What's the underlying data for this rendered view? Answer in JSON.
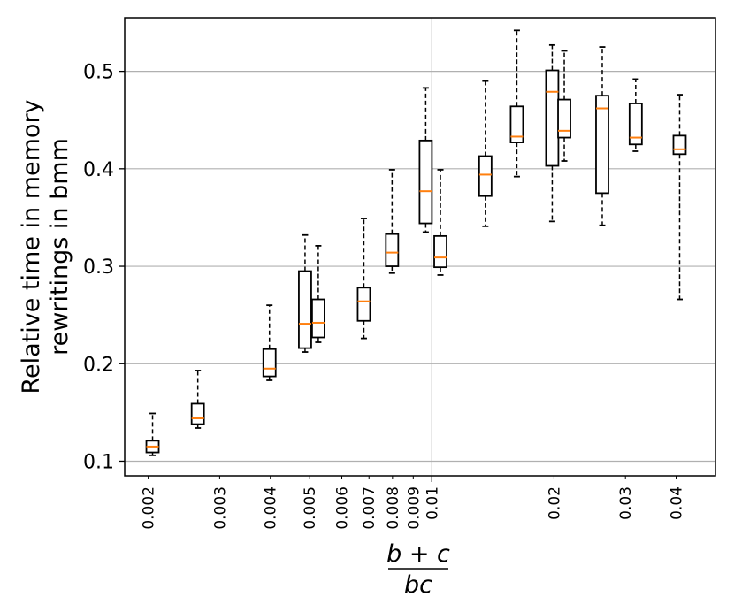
{
  "chart_data": {
    "type": "boxplot",
    "xscale": "log",
    "xlim": [
      0.00175,
      0.05
    ],
    "ylim": [
      0.085,
      0.555
    ],
    "grid": true,
    "ylabel": [
      "Relative time in memory",
      "rewritings in bmm"
    ],
    "xlabel": {
      "numerator": "b + c",
      "denominator": "bc"
    },
    "x_ticks": [
      {
        "value": 0.002,
        "label": "0.002"
      },
      {
        "value": 0.003,
        "label": "0.003"
      },
      {
        "value": 0.004,
        "label": "0.004"
      },
      {
        "value": 0.005,
        "label": "0.005"
      },
      {
        "value": 0.006,
        "label": "0.006"
      },
      {
        "value": 0.007,
        "label": "0.007"
      },
      {
        "value": 0.008,
        "label": "0.008"
      },
      {
        "value": 0.009,
        "label": "0.009"
      },
      {
        "value": 0.01,
        "label": "0.01"
      },
      {
        "value": 0.02,
        "label": "0.02"
      },
      {
        "value": 0.03,
        "label": "0.03"
      },
      {
        "value": 0.04,
        "label": "0.04"
      }
    ],
    "y_ticks": [
      {
        "value": 0.1,
        "label": "0.1"
      },
      {
        "value": 0.2,
        "label": "0.2"
      },
      {
        "value": 0.3,
        "label": "0.3"
      },
      {
        "value": 0.4,
        "label": "0.4"
      },
      {
        "value": 0.5,
        "label": "0.5"
      }
    ],
    "boxes": [
      {
        "x": 0.00205,
        "whislo": 0.106,
        "q1": 0.109,
        "med": 0.115,
        "q3": 0.121,
        "whishi": 0.149
      },
      {
        "x": 0.00265,
        "whislo": 0.134,
        "q1": 0.138,
        "med": 0.144,
        "q3": 0.159,
        "whishi": 0.193
      },
      {
        "x": 0.00398,
        "whislo": 0.183,
        "q1": 0.187,
        "med": 0.195,
        "q3": 0.215,
        "whishi": 0.26
      },
      {
        "x": 0.00487,
        "whislo": 0.212,
        "q1": 0.216,
        "med": 0.241,
        "q3": 0.295,
        "whishi": 0.332
      },
      {
        "x": 0.00525,
        "whislo": 0.222,
        "q1": 0.227,
        "med": 0.242,
        "q3": 0.266,
        "whishi": 0.321
      },
      {
        "x": 0.0068,
        "whislo": 0.226,
        "q1": 0.244,
        "med": 0.264,
        "q3": 0.278,
        "whishi": 0.349
      },
      {
        "x": 0.00798,
        "whislo": 0.293,
        "q1": 0.3,
        "med": 0.314,
        "q3": 0.333,
        "whishi": 0.399
      },
      {
        "x": 0.00966,
        "whislo": 0.335,
        "q1": 0.344,
        "med": 0.377,
        "q3": 0.429,
        "whishi": 0.483
      },
      {
        "x": 0.0105,
        "whislo": 0.291,
        "q1": 0.299,
        "med": 0.309,
        "q3": 0.331,
        "whishi": 0.399
      },
      {
        "x": 0.01355,
        "whislo": 0.341,
        "q1": 0.372,
        "med": 0.394,
        "q3": 0.413,
        "whishi": 0.49
      },
      {
        "x": 0.0162,
        "whislo": 0.392,
        "q1": 0.427,
        "med": 0.433,
        "q3": 0.464,
        "whishi": 0.542
      },
      {
        "x": 0.0198,
        "whislo": 0.346,
        "q1": 0.403,
        "med": 0.479,
        "q3": 0.501,
        "whishi": 0.527
      },
      {
        "x": 0.0212,
        "whislo": 0.408,
        "q1": 0.432,
        "med": 0.439,
        "q3": 0.471,
        "whishi": 0.521
      },
      {
        "x": 0.0263,
        "whislo": 0.342,
        "q1": 0.375,
        "med": 0.462,
        "q3": 0.475,
        "whishi": 0.525
      },
      {
        "x": 0.0318,
        "whislo": 0.418,
        "q1": 0.425,
        "med": 0.432,
        "q3": 0.467,
        "whishi": 0.492
      },
      {
        "x": 0.0408,
        "whislo": 0.266,
        "q1": 0.415,
        "med": 0.42,
        "q3": 0.434,
        "whishi": 0.476
      }
    ],
    "colors": {
      "box": "#000000",
      "median": "#ff7f0e",
      "grid": "#b0b0b0"
    }
  }
}
